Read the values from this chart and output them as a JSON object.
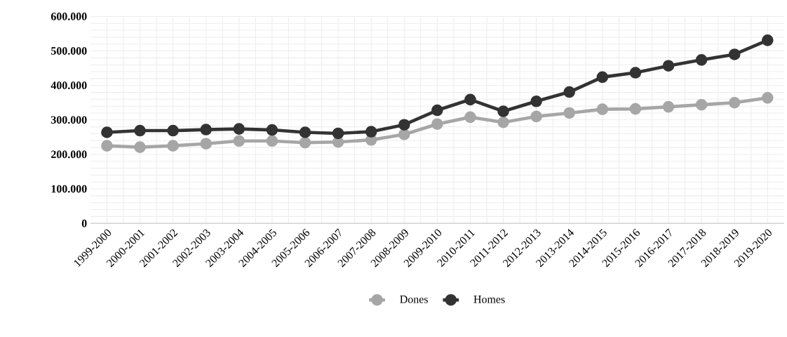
{
  "chart_data": {
    "type": "line",
    "categories": [
      "1999-2000",
      "2000-2001",
      "2001-2002",
      "2002-2003",
      "2003-2004",
      "2004-2005",
      "2005-2006",
      "2006-2007",
      "2007-2008",
      "2008-2009",
      "2009-2010",
      "2010-2011",
      "2011-2012",
      "2012-2013",
      "2013-2014",
      "2014-2015",
      "2015-2016",
      "2016-2017",
      "2017-2018",
      "2018-2019",
      "2019-2020"
    ],
    "series": [
      {
        "name": "Dones",
        "color": "#a6a6a6",
        "values": [
          225000,
          221000,
          225000,
          231000,
          239000,
          239000,
          234000,
          236000,
          242000,
          258000,
          288000,
          308000,
          293000,
          310000,
          320000,
          331000,
          332000,
          338000,
          344000,
          350000,
          364000
        ]
      },
      {
        "name": "Homes",
        "color": "#333333",
        "values": [
          264000,
          269000,
          269000,
          272000,
          274000,
          271000,
          264000,
          261000,
          266000,
          286000,
          328000,
          359000,
          325000,
          354000,
          381000,
          424000,
          437000,
          457000,
          474000,
          490000,
          531000
        ]
      }
    ],
    "ylim": [
      0,
      600000
    ],
    "yticks": [
      {
        "value": 0,
        "label": "0"
      },
      {
        "value": 100000,
        "label": "100.000"
      },
      {
        "value": 200000,
        "label": "200.000"
      },
      {
        "value": 300000,
        "label": "300.000"
      },
      {
        "value": 400000,
        "label": "400.000"
      },
      {
        "value": 500000,
        "label": "500.000"
      },
      {
        "value": 600000,
        "label": "600.000"
      }
    ],
    "grid": true,
    "legend": "bottom",
    "marker": "circle",
    "line_style": "solid"
  }
}
